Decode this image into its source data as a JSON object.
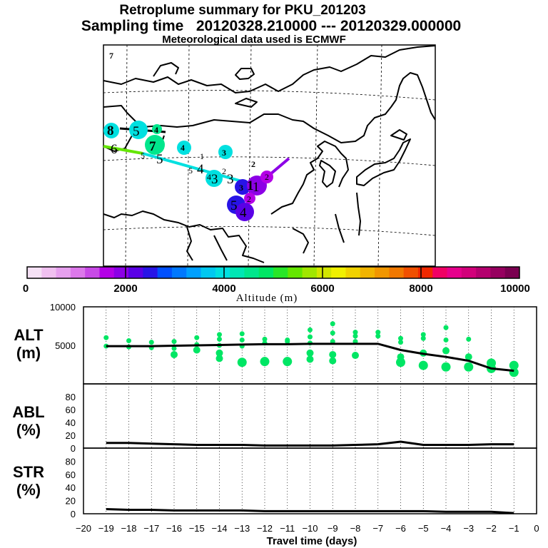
{
  "header": {
    "title": "Retroplume summary for PKU_201203",
    "sampling": "Sampling time   20120328.210000 --- 20120329.000000",
    "met": "Meteorological data used is ECMWF"
  },
  "colorbar": {
    "ticks": [
      "0",
      "2000",
      "4000",
      "6000",
      "8000",
      "10000"
    ],
    "label": "Altitude (m)",
    "colors": [
      "#f5e1f5",
      "#f0c0f0",
      "#e6a0ee",
      "#dc78ea",
      "#c84ae6",
      "#b400e6",
      "#8c00e6",
      "#5a00e6",
      "#2814e6",
      "#0050ff",
      "#0078ff",
      "#00a0ff",
      "#00c8f0",
      "#00e0e0",
      "#00e6b4",
      "#00e68c",
      "#00e664",
      "#28e628",
      "#64e600",
      "#a0e600",
      "#d2e600",
      "#f0f000",
      "#f0d200",
      "#f0b400",
      "#f09600",
      "#f07800",
      "#f05000",
      "#f02800",
      "#f00064",
      "#e6008c",
      "#d2007a",
      "#b4006e",
      "#96005f",
      "#7a0050"
    ]
  },
  "map": {
    "corner_label": "7",
    "cyan_labels": [
      "8",
      "5",
      "4",
      "4",
      "3",
      "2",
      "7"
    ],
    "black_labels": [
      "6",
      "5",
      "5",
      "4",
      "1",
      "4",
      "5",
      "3",
      "2",
      "3",
      "1",
      "5",
      "4"
    ],
    "blue_labels": [
      "3",
      "1",
      "2",
      "2"
    ]
  },
  "chart_data": [
    {
      "type": "line",
      "panel": "ALT",
      "ylabel": "ALT (m)",
      "x": [
        -19,
        -18,
        -17,
        -16,
        -15,
        -14,
        -13,
        -12,
        -11,
        -10,
        -9,
        -8,
        -7,
        -6,
        -5,
        -4,
        -3,
        -2,
        -1
      ],
      "series": [
        {
          "name": "mean altitude",
          "values": [
            4900,
            4900,
            4900,
            4950,
            5000,
            5050,
            5100,
            5150,
            5150,
            5200,
            5200,
            5200,
            5200,
            4400,
            3900,
            3500,
            3000,
            2000,
            1700
          ]
        },
        {
          "name": "cluster altitudes (scatter)",
          "points": [
            [
              -19,
              6000
            ],
            [
              -19,
              4900
            ],
            [
              -18,
              5600
            ],
            [
              -18,
              4800
            ],
            [
              -17,
              5400
            ],
            [
              -17,
              4700
            ],
            [
              -16,
              5500
            ],
            [
              -16,
              4600
            ],
            [
              -16,
              3800
            ],
            [
              -15,
              6000
            ],
            [
              -15,
              5100
            ],
            [
              -15,
              4400
            ],
            [
              -14,
              6400
            ],
            [
              -14,
              5800
            ],
            [
              -14,
              5000
            ],
            [
              -14,
              4000
            ],
            [
              -14,
              3300
            ],
            [
              -13,
              6500
            ],
            [
              -13,
              5700
            ],
            [
              -13,
              4900
            ],
            [
              -13,
              2800
            ],
            [
              -12,
              5800
            ],
            [
              -12,
              5300
            ],
            [
              -12,
              2900
            ],
            [
              -11,
              5700
            ],
            [
              -11,
              5500
            ],
            [
              -11,
              2900
            ],
            [
              -10,
              7000
            ],
            [
              -10,
              6100
            ],
            [
              -10,
              5300
            ],
            [
              -10,
              4000
            ],
            [
              -10,
              3200
            ],
            [
              -9,
              7800
            ],
            [
              -9,
              6600
            ],
            [
              -9,
              5500
            ],
            [
              -9,
              3800
            ],
            [
              -9,
              3000
            ],
            [
              -8,
              6700
            ],
            [
              -8,
              6200
            ],
            [
              -8,
              5500
            ],
            [
              -8,
              3700
            ],
            [
              -7,
              6700
            ],
            [
              -7,
              6200
            ],
            [
              -6,
              5900
            ],
            [
              -6,
              5400
            ],
            [
              -6,
              3500
            ],
            [
              -6,
              2800
            ],
            [
              -5,
              6400
            ],
            [
              -5,
              5900
            ],
            [
              -5,
              4000
            ],
            [
              -5,
              2400
            ],
            [
              -4,
              7300
            ],
            [
              -4,
              5700
            ],
            [
              -4,
              4300
            ],
            [
              -4,
              2200
            ],
            [
              -3,
              5800
            ],
            [
              -3,
              3500
            ],
            [
              -3,
              2200
            ],
            [
              -2,
              2700
            ],
            [
              -2,
              2000
            ],
            [
              -1,
              2400
            ],
            [
              -1,
              1500
            ]
          ]
        }
      ],
      "yticks": [
        "10000",
        "5000"
      ],
      "ylim": [
        0,
        10000
      ]
    },
    {
      "type": "line",
      "panel": "ABL",
      "ylabel": "ABL (%)",
      "x": [
        -19,
        -18,
        -17,
        -16,
        -15,
        -14,
        -13,
        -12,
        -11,
        -10,
        -9,
        -8,
        -7,
        -6,
        -5,
        -4,
        -3,
        -2,
        -1
      ],
      "series": [
        {
          "name": "ABL fraction",
          "values": [
            8,
            8,
            7,
            6,
            5,
            5,
            5,
            4,
            4,
            4,
            4,
            5,
            6,
            10,
            5,
            5,
            5,
            6,
            6
          ]
        }
      ],
      "yticks": [
        "80",
        "60",
        "40",
        "20",
        "0"
      ],
      "ylim": [
        0,
        100
      ]
    },
    {
      "type": "line",
      "panel": "STR",
      "ylabel": "STR (%)",
      "x": [
        -19,
        -18,
        -17,
        -16,
        -15,
        -14,
        -13,
        -12,
        -11,
        -10,
        -9,
        -8,
        -7,
        -6,
        -5,
        -4,
        -3,
        -2,
        -1
      ],
      "series": [
        {
          "name": "stratospheric fraction",
          "values": [
            7,
            6,
            6,
            5,
            5,
            5,
            5,
            4,
            4,
            4,
            4,
            4,
            4,
            4,
            4,
            3,
            3,
            3,
            1
          ]
        }
      ],
      "yticks": [
        "80",
        "60",
        "40",
        "20",
        "0"
      ],
      "ylim": [
        0,
        100
      ]
    }
  ],
  "xaxis": {
    "ticks": [
      "−20",
      "−19",
      "−18",
      "−17",
      "−16",
      "−15",
      "−14",
      "−13",
      "−12",
      "−11",
      "−10",
      "−9",
      "−8",
      "−7",
      "−6",
      "−5",
      "−4",
      "−3",
      "−2",
      "−1",
      "0"
    ],
    "label": "Travel time (days)"
  },
  "panel_labels": {
    "alt_top": "ALT",
    "alt_bot": "(m)",
    "abl_top": "ABL",
    "abl_bot": "(%)",
    "str_top": "STR",
    "str_bot": "(%)"
  }
}
